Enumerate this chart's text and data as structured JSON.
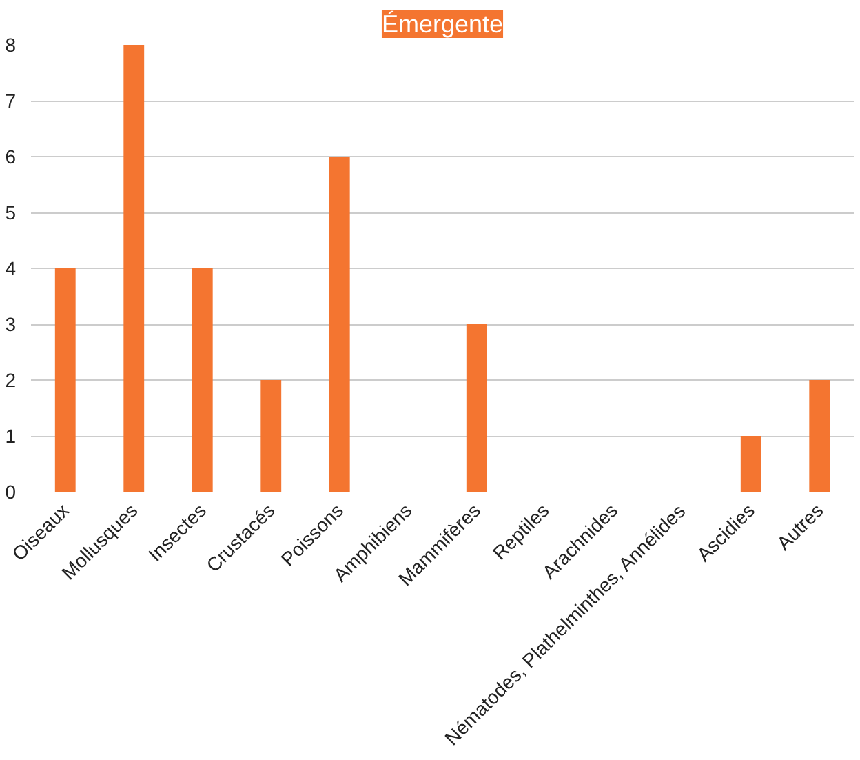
{
  "chart_data": {
    "type": "bar",
    "title": "Émergente",
    "categories": [
      "Oiseaux",
      "Mollusques",
      "Insectes",
      "Crustacés",
      "Poissons",
      "Amphibiens",
      "Mammifères",
      "Reptiles",
      "Arachnides",
      "Nématodes, Plathelminthes, Annélides",
      "Ascidies",
      "Autres"
    ],
    "values": [
      4,
      8,
      4,
      2,
      6,
      0,
      3,
      0,
      0,
      0,
      1,
      2
    ],
    "color": "#f47530",
    "ylim": [
      0,
      8
    ],
    "yticks": [
      0,
      1,
      2,
      3,
      4,
      5,
      6,
      7,
      8
    ],
    "grid": "y"
  }
}
